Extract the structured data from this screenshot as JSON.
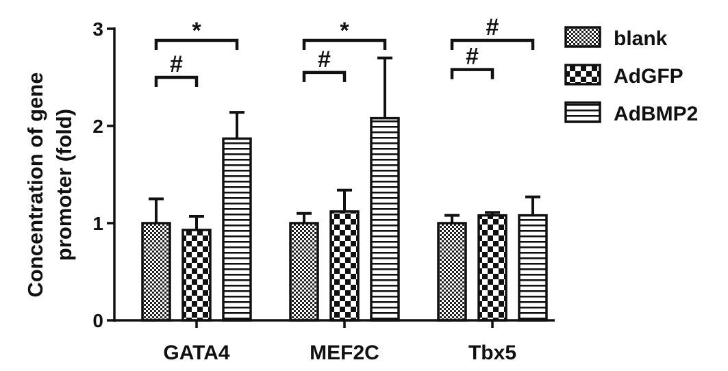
{
  "chart_data": {
    "type": "bar",
    "title": "",
    "xlabel": "",
    "ylabel_lines": [
      "Concentration of gene",
      "promoter (fold)"
    ],
    "ylim": [
      0,
      3
    ],
    "yticks": [
      "0",
      "1",
      "2",
      "3"
    ],
    "grid": false,
    "legend_position": "right",
    "categories": [
      "GATA4",
      "MEF2C",
      "Tbx5"
    ],
    "series": [
      {
        "name": "blank",
        "pattern": "dots",
        "values": [
          1.0,
          1.0,
          1.0
        ],
        "errors": [
          0.25,
          0.1,
          0.08
        ]
      },
      {
        "name": "AdGFP",
        "pattern": "checkerboard",
        "values": [
          0.93,
          1.12,
          1.08
        ],
        "errors": [
          0.14,
          0.22,
          0.03
        ]
      },
      {
        "name": "AdBMP2",
        "pattern": "hlines",
        "values": [
          1.87,
          2.08,
          1.08
        ],
        "errors": [
          0.27,
          0.62,
          0.19
        ]
      }
    ],
    "significance": [
      {
        "category": 0,
        "from": 0,
        "to": 2,
        "label": "*",
        "y": 2.88
      },
      {
        "category": 0,
        "from": 0,
        "to": 1,
        "label": "#",
        "y": 2.5
      },
      {
        "category": 1,
        "from": 0,
        "to": 2,
        "label": "*",
        "y": 2.88
      },
      {
        "category": 1,
        "from": 0,
        "to": 1,
        "label": "#",
        "y": 2.55
      },
      {
        "category": 2,
        "from": 0,
        "to": 2,
        "label": "#",
        "y": 2.88
      },
      {
        "category": 2,
        "from": 0,
        "to": 1,
        "label": "#",
        "y": 2.58
      }
    ],
    "colors": {
      "ink": "#111111",
      "background": "#ffffff"
    }
  }
}
